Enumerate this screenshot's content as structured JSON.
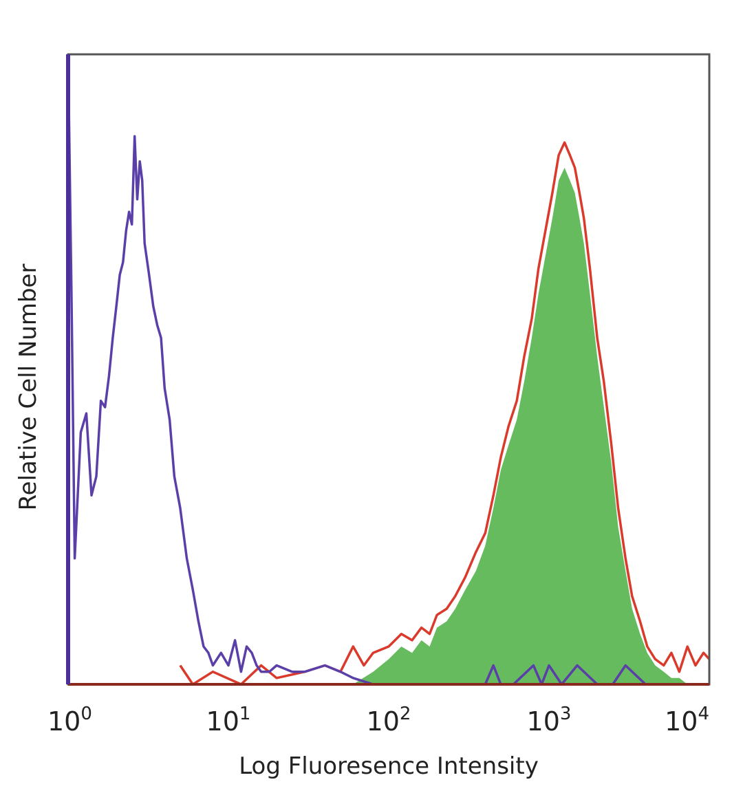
{
  "chart_data": {
    "type": "area",
    "title": "",
    "xlabel": "Log Fluoresence Intensity",
    "ylabel": "Relative Cell Number",
    "x_scale": "log",
    "xlim": [
      1,
      10000
    ],
    "ylim": [
      0,
      100
    ],
    "x_ticks": [
      {
        "value": 1,
        "base": "10",
        "exp": "0"
      },
      {
        "value": 10,
        "base": "10",
        "exp": "1"
      },
      {
        "value": 100,
        "base": "10",
        "exp": "2"
      },
      {
        "value": 1000,
        "base": "10",
        "exp": "3"
      },
      {
        "value": 10000,
        "base": "10",
        "exp": "4"
      }
    ],
    "grid": false,
    "legend": "none",
    "series": [
      {
        "style": "filled",
        "fill_color": "#66bb5f",
        "x": [
          60,
          80,
          100,
          120,
          140,
          160,
          180,
          200,
          230,
          260,
          300,
          350,
          400,
          450,
          500,
          560,
          630,
          700,
          780,
          860,
          950,
          1050,
          1150,
          1250,
          1350,
          1450,
          1550,
          1650,
          1800,
          2000,
          2200,
          2450,
          2700,
          3000,
          3300,
          3700,
          4100,
          4600,
          5200,
          5800,
          6500,
          7300,
          8200,
          9200,
          10000
        ],
        "y": [
          0,
          2,
          4,
          6,
          5,
          7,
          6,
          9,
          10,
          12,
          15,
          18,
          22,
          28,
          34,
          38,
          42,
          48,
          55,
          62,
          68,
          74,
          80,
          82,
          80,
          78,
          74,
          70,
          62,
          52,
          44,
          35,
          25,
          18,
          12,
          8,
          5,
          3,
          2,
          1,
          1,
          0,
          0,
          0,
          0
        ]
      },
      {
        "style": "line",
        "line_color": "#d93a2b",
        "x": [
          5,
          6,
          8,
          12,
          16,
          20,
          30,
          40,
          50,
          60,
          70,
          80,
          100,
          120,
          140,
          160,
          180,
          200,
          230,
          260,
          300,
          350,
          400,
          450,
          500,
          560,
          630,
          700,
          780,
          860,
          950,
          1050,
          1150,
          1250,
          1350,
          1450,
          1550,
          1650,
          1800,
          2000,
          2200,
          2450,
          2700,
          3000,
          3300,
          3700,
          4100,
          4600,
          5200,
          5800,
          6500,
          7300,
          8200,
          9200,
          10000
        ],
        "y": [
          3,
          0,
          2,
          0,
          3,
          1,
          2,
          3,
          2,
          6,
          3,
          5,
          6,
          8,
          7,
          9,
          8,
          11,
          12,
          14,
          17,
          21,
          24,
          30,
          36,
          41,
          45,
          52,
          58,
          66,
          72,
          78,
          84,
          86,
          84,
          82,
          78,
          74,
          66,
          55,
          48,
          38,
          28,
          20,
          14,
          10,
          6,
          4,
          3,
          5,
          2,
          6,
          3,
          5,
          4
        ]
      },
      {
        "style": "line",
        "line_color": "#5b3fa8",
        "x": [
          1,
          1.05,
          1.1,
          1.2,
          1.3,
          1.4,
          1.5,
          1.6,
          1.7,
          1.8,
          1.9,
          2.0,
          2.1,
          2.2,
          2.3,
          2.4,
          2.5,
          2.6,
          2.7,
          2.8,
          2.9,
          3.0,
          3.2,
          3.4,
          3.6,
          3.8,
          4.0,
          4.3,
          4.6,
          5.0,
          5.5,
          6.0,
          6.5,
          7.0,
          7.5,
          8.0,
          9.0,
          10,
          11,
          12,
          13,
          14,
          15,
          16,
          18,
          20,
          25,
          30,
          40,
          50,
          60,
          80,
          100,
          200,
          400,
          450,
          500,
          600,
          800,
          900,
          1000,
          1200,
          1500,
          2000,
          2500,
          3000,
          4000,
          10000
        ],
        "y": [
          100,
          62,
          20,
          40,
          43,
          30,
          33,
          45,
          44,
          49,
          55,
          60,
          65,
          67,
          72,
          75,
          73,
          87,
          77,
          83,
          80,
          70,
          65,
          60,
          57,
          55,
          47,
          42,
          33,
          28,
          20,
          15,
          10,
          6,
          5,
          3,
          5,
          3,
          7,
          2,
          6,
          5,
          3,
          2,
          2,
          3,
          2,
          2,
          3,
          2,
          1,
          0,
          0,
          0,
          0,
          3,
          0,
          0,
          3,
          0,
          3,
          0,
          3,
          0,
          0,
          3,
          0,
          0
        ]
      }
    ]
  }
}
